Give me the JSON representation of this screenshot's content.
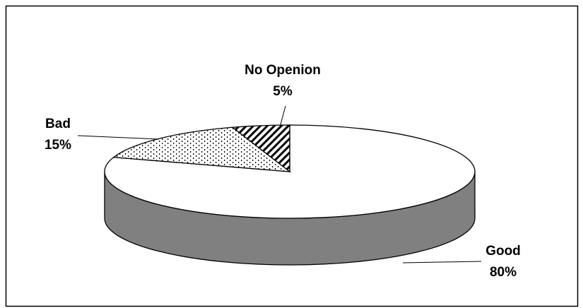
{
  "chart_data": {
    "type": "pie3d",
    "categories": [
      "Good",
      "Bad",
      "No Openion"
    ],
    "values": [
      80,
      15,
      5
    ],
    "value_labels": [
      "80%",
      "15%",
      "5%"
    ]
  }
}
